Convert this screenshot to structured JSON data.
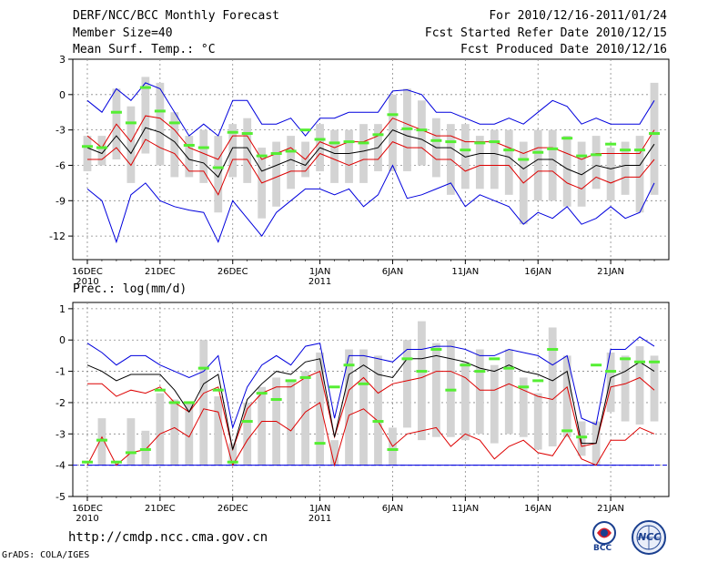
{
  "header": {
    "title": "DERF/NCC/BCC Monthly Forecast",
    "member_size": "Member Size=40",
    "variable": "Mean Surf. Temp.: °C",
    "period": "For 2010/12/16-2011/01/24",
    "fcst_started": "Fcst Started Refer Date 2010/12/15",
    "fcst_produced": "Fcst Produced Date 2010/12/16"
  },
  "footer": {
    "url": "http://cmdp.ncc.cma.gov.cn",
    "credit": "GrADS: COLA/IGES",
    "logo_bcc": "BCC",
    "logo_ncc": "NCC"
  },
  "colors": {
    "max_min": "#0000dd",
    "spread": "#dd0000",
    "mean": "#000000",
    "box": "#d3d3d3",
    "marker": "#55ee33",
    "baseline": "#0000dd"
  },
  "chart_data": [
    {
      "type": "box-line",
      "name": "temperature",
      "title": "Mean Surf. Temp.: °C",
      "ylim": [
        -14,
        3
      ],
      "yticks": [
        3,
        0,
        -3,
        -6,
        -9,
        -12
      ],
      "xticks": [
        {
          "day": 0,
          "label": "16DEC",
          "sub": "2010"
        },
        {
          "day": 5,
          "label": "21DEC"
        },
        {
          "day": 10,
          "label": "26DEC"
        },
        {
          "day": 16,
          "label": "1JAN",
          "sub": "2011"
        },
        {
          "day": 21,
          "label": "6JAN"
        },
        {
          "day": 26,
          "label": "11JAN"
        },
        {
          "day": 31,
          "label": "16JAN"
        },
        {
          "day": 36,
          "label": "21JAN"
        }
      ],
      "days": 40,
      "max": [
        -0.5,
        -1.5,
        0.5,
        -0.5,
        1.0,
        0.5,
        -1.5,
        -3.5,
        -2.5,
        -3.5,
        -0.5,
        -0.5,
        -2.5,
        -2.5,
        -2.0,
        -3.5,
        -2.0,
        -2.0,
        -1.5,
        -1.5,
        -1.5,
        0.3,
        0.4,
        0.0,
        -1.5,
        -1.5,
        -2.0,
        -2.5,
        -2.5,
        -2.0,
        -2.5,
        -1.5,
        -0.5,
        -1.0,
        -2.5,
        -2.0,
        -2.5,
        -2.5,
        -2.5,
        -0.5
      ],
      "min": [
        -8.0,
        -9.0,
        -12.5,
        -8.5,
        -7.5,
        -9.0,
        -9.5,
        -9.8,
        -10.0,
        -12.5,
        -9.0,
        -10.5,
        -12.0,
        -10.0,
        -9.0,
        -8.0,
        -8.0,
        -8.5,
        -8.0,
        -9.5,
        -8.5,
        -6.0,
        -8.8,
        -8.5,
        -8.0,
        -7.5,
        -9.5,
        -8.5,
        -9.0,
        -9.5,
        -11.0,
        -10.0,
        -10.5,
        -9.5,
        -11.0,
        -10.5,
        -9.5,
        -10.5,
        -10.0,
        -7.5
      ],
      "spread_hi": [
        -3.5,
        -4.5,
        -2.5,
        -4.0,
        -1.8,
        -2.0,
        -3.0,
        -4.5,
        -5.0,
        -5.5,
        -3.5,
        -3.5,
        -5.5,
        -5.0,
        -4.5,
        -5.5,
        -4.0,
        -4.5,
        -4.0,
        -4.0,
        -3.5,
        -2.0,
        -2.5,
        -3.0,
        -3.5,
        -3.5,
        -4.0,
        -4.0,
        -4.0,
        -4.5,
        -5.0,
        -4.5,
        -4.5,
        -5.0,
        -5.5,
        -5.0,
        -5.0,
        -5.0,
        -5.0,
        -3.0
      ],
      "spread_lo": [
        -5.5,
        -5.5,
        -4.5,
        -6.0,
        -3.8,
        -4.5,
        -5.0,
        -6.5,
        -6.5,
        -8.5,
        -5.5,
        -5.5,
        -7.5,
        -7.0,
        -6.5,
        -6.5,
        -5.0,
        -5.5,
        -6.0,
        -5.5,
        -5.5,
        -4.0,
        -4.5,
        -4.5,
        -5.5,
        -5.5,
        -6.5,
        -6.0,
        -6.0,
        -6.0,
        -7.5,
        -6.5,
        -6.5,
        -7.5,
        -8.0,
        -7.0,
        -7.5,
        -7.0,
        -7.0,
        -5.5
      ],
      "mean": [
        -4.5,
        -5.0,
        -3.5,
        -5.0,
        -2.8,
        -3.2,
        -4.0,
        -5.5,
        -5.8,
        -7.0,
        -4.5,
        -4.5,
        -6.5,
        -6.0,
        -5.5,
        -6.0,
        -4.5,
        -5.0,
        -5.0,
        -4.8,
        -4.5,
        -3.0,
        -3.5,
        -3.8,
        -4.5,
        -4.5,
        -5.3,
        -5.0,
        -5.0,
        -5.3,
        -6.3,
        -5.5,
        -5.5,
        -6.3,
        -6.8,
        -6.0,
        -6.3,
        -6.0,
        -6.0,
        -4.2
      ],
      "box_hi": [
        -3.5,
        -3.5,
        0.5,
        -1.0,
        1.5,
        1.0,
        -1.5,
        -3.5,
        -3.0,
        -3.5,
        -2.5,
        -2.0,
        -4.5,
        -4.0,
        -3.5,
        -4.0,
        -2.5,
        -3.0,
        -3.0,
        -2.5,
        -2.5,
        0.0,
        0.5,
        -0.5,
        -2.0,
        -2.5,
        -2.5,
        -3.5,
        -3.0,
        -3.0,
        -4.0,
        -3.0,
        -3.0,
        -3.5,
        -4.0,
        -3.5,
        -4.5,
        -4.0,
        -3.5,
        1.0
      ],
      "box_lo": [
        -6.5,
        -6.0,
        -5.5,
        -7.5,
        -5.0,
        -6.0,
        -7.0,
        -7.0,
        -7.5,
        -10.0,
        -7.0,
        -7.5,
        -10.5,
        -9.5,
        -8.0,
        -7.0,
        -6.5,
        -7.5,
        -7.5,
        -7.5,
        -6.5,
        -6.5,
        -6.5,
        -6.0,
        -7.0,
        -8.5,
        -8.0,
        -8.0,
        -8.0,
        -8.5,
        -11.0,
        -9.0,
        -9.0,
        -9.5,
        -9.5,
        -8.0,
        -9.0,
        -8.5,
        -10.0,
        -8.5
      ],
      "marker": [
        -4.4,
        -4.5,
        -1.5,
        -2.4,
        0.6,
        -1.4,
        -2.4,
        -4.3,
        -4.5,
        -6.2,
        -3.2,
        -3.3,
        -5.2,
        -5.0,
        -4.8,
        -3.0,
        -3.8,
        -4.1,
        -4.0,
        -4.1,
        -3.4,
        -1.7,
        -2.9,
        -3.0,
        -3.9,
        -4.0,
        -4.7,
        -4.1,
        -4.0,
        -4.7,
        -5.5,
        -4.9,
        -4.6,
        -3.7,
        -5.2,
        -5.1,
        -4.2,
        -4.7,
        -4.7,
        -3.3
      ]
    },
    {
      "type": "box-line",
      "name": "precipitation",
      "title": "Prec.: log(mm/d)",
      "ylim": [
        -5,
        1.2
      ],
      "yticks": [
        1,
        0,
        -1,
        -2,
        -3,
        -4,
        -5
      ],
      "baseline": -4,
      "xticks": [
        {
          "day": 0,
          "label": "16DEC",
          "sub": "2010"
        },
        {
          "day": 5,
          "label": "21DEC"
        },
        {
          "day": 10,
          "label": "26DEC"
        },
        {
          "day": 16,
          "label": "1JAN",
          "sub": "2011"
        },
        {
          "day": 21,
          "label": "6JAN"
        },
        {
          "day": 26,
          "label": "11JAN"
        },
        {
          "day": 31,
          "label": "16JAN"
        },
        {
          "day": 36,
          "label": "21JAN"
        }
      ],
      "days": 40,
      "max": [
        -0.1,
        -0.4,
        -0.8,
        -0.5,
        -0.5,
        -0.8,
        -1.0,
        -1.2,
        -1.0,
        -0.5,
        -2.8,
        -1.5,
        -0.8,
        -0.5,
        -0.8,
        -0.2,
        -0.1,
        -2.5,
        -0.5,
        -0.5,
        -0.6,
        -0.7,
        -0.3,
        -0.3,
        -0.2,
        -0.2,
        -0.3,
        -0.5,
        -0.5,
        -0.3,
        -0.4,
        -0.5,
        -0.8,
        -0.5,
        -2.5,
        -2.7,
        -0.3,
        -0.3,
        0.1,
        -0.2
      ],
      "min": [
        -4.0,
        -4.0,
        -4.0,
        -4.0,
        -4.0,
        -4.0,
        -4.0,
        -4.0,
        -4.0,
        -4.0,
        -4.0,
        -4.0,
        -4.0,
        -4.0,
        -4.0,
        -4.0,
        -4.0,
        -4.0,
        -4.0,
        -4.0,
        -4.0,
        -4.0,
        -4.0,
        -4.0,
        -4.0,
        -4.0,
        -4.0,
        -4.0,
        -4.0,
        -4.0,
        -4.0,
        -4.0,
        -4.0,
        -4.0,
        -4.0,
        -4.0,
        -4.0,
        -4.0,
        -4.0,
        -4.0
      ],
      "spread_hi": [
        -1.4,
        -1.4,
        -1.8,
        -1.6,
        -1.7,
        -1.5,
        -2.0,
        -2.3,
        -1.7,
        -1.5,
        -3.5,
        -2.2,
        -1.7,
        -1.5,
        -1.5,
        -1.2,
        -1.0,
        -3.1,
        -1.6,
        -1.2,
        -1.7,
        -1.4,
        -1.3,
        -1.2,
        -1.0,
        -1.0,
        -1.2,
        -1.6,
        -1.6,
        -1.4,
        -1.6,
        -1.8,
        -1.9,
        -1.5,
        -3.4,
        -3.3,
        -1.5,
        -1.4,
        -1.2,
        -1.6
      ],
      "spread_lo": [
        -4.0,
        -3.1,
        -4.0,
        -3.6,
        -3.5,
        -3.0,
        -2.8,
        -3.1,
        -2.2,
        -2.3,
        -4.0,
        -3.2,
        -2.6,
        -2.6,
        -2.9,
        -2.3,
        -2.0,
        -4.0,
        -2.4,
        -2.2,
        -2.6,
        -3.4,
        -3.0,
        -2.9,
        -2.8,
        -3.4,
        -3.0,
        -3.2,
        -3.8,
        -3.4,
        -3.2,
        -3.6,
        -3.7,
        -3.0,
        -3.8,
        -4.0,
        -3.2,
        -3.2,
        -2.8,
        -3.0
      ],
      "mean": [
        -0.8,
        -1.0,
        -1.3,
        -1.1,
        -1.1,
        -1.1,
        -1.6,
        -2.3,
        -1.4,
        -1.1,
        -3.5,
        -1.9,
        -1.4,
        -1.0,
        -1.1,
        -0.7,
        -0.6,
        -3.1,
        -1.1,
        -0.8,
        -1.1,
        -1.2,
        -0.6,
        -0.6,
        -0.5,
        -0.6,
        -0.7,
        -0.9,
        -1.0,
        -0.8,
        -1.0,
        -1.1,
        -1.3,
        -1.0,
        -3.3,
        -3.3,
        -1.2,
        -1.0,
        -0.7,
        -1.0
      ],
      "box_hi": [
        -4.0,
        -2.5,
        -4.0,
        -2.5,
        -2.9,
        -1.7,
        -1.9,
        -2.0,
        0.0,
        -1.8,
        -3.3,
        -2.0,
        -1.5,
        -1.2,
        -1.3,
        -1.0,
        -0.4,
        -3.2,
        -0.3,
        -0.3,
        -0.5,
        -2.8,
        0.0,
        0.6,
        -0.1,
        0.0,
        -0.7,
        -0.3,
        -0.8,
        -0.3,
        -1.2,
        -1.7,
        0.4,
        -0.5,
        -2.6,
        -2.6,
        -0.4,
        -0.5,
        -0.2,
        -0.5
      ],
      "box_lo": [
        -4.0,
        -4.0,
        -4.0,
        -4.0,
        -4.0,
        -4.0,
        -4.0,
        -4.0,
        -4.0,
        -4.0,
        -4.0,
        -4.0,
        -4.0,
        -4.0,
        -4.0,
        -4.0,
        -4.0,
        -4.0,
        -4.0,
        -4.0,
        -4.0,
        -4.0,
        -2.8,
        -3.2,
        -3.1,
        -3.1,
        -3.2,
        -3.0,
        -3.3,
        -3.0,
        -3.1,
        -3.5,
        -3.4,
        -3.1,
        -3.7,
        -4.0,
        -2.3,
        -2.6,
        -2.7,
        -2.6
      ],
      "marker": [
        -3.9,
        -3.2,
        -3.9,
        -3.6,
        -3.5,
        -1.6,
        -2.0,
        -2.0,
        -0.9,
        -1.6,
        -3.9,
        -2.6,
        -1.7,
        -1.9,
        -1.3,
        -1.2,
        -3.3,
        -1.5,
        -0.8,
        -1.4,
        -2.6,
        -3.5,
        -0.6,
        -1.0,
        -0.3,
        -1.6,
        -0.8,
        -1.0,
        -0.6,
        -0.9,
        -1.5,
        -1.3,
        -0.3,
        -2.9,
        -3.1,
        -0.8,
        -1.0,
        -0.6,
        -0.7,
        -0.7
      ]
    }
  ]
}
